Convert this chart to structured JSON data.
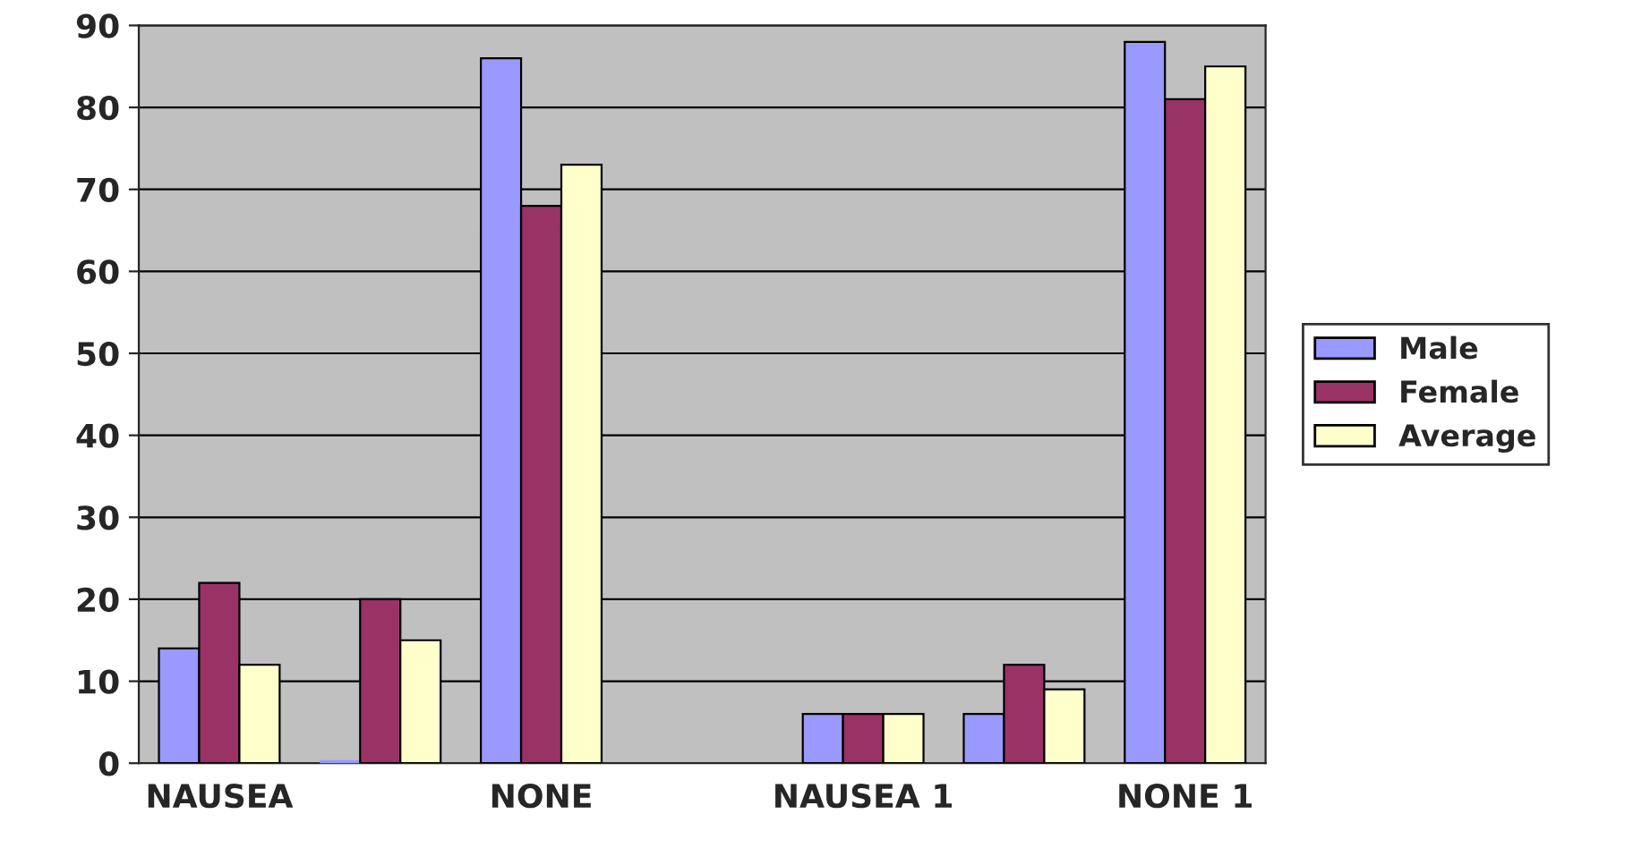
{
  "chart_data": {
    "type": "bar",
    "categories": [
      "NAUSEA",
      null,
      "NONE",
      null,
      "NAUSEA 1",
      null,
      "NONE 1"
    ],
    "series": [
      {
        "name": "Male",
        "color": "#9999ff",
        "values": [
          14,
          0,
          86,
          null,
          6,
          6,
          88
        ]
      },
      {
        "name": "Female",
        "color": "#993366",
        "values": [
          22,
          20,
          68,
          null,
          6,
          12,
          81
        ]
      },
      {
        "name": "Average",
        "color": "#ffffcc",
        "values": [
          12,
          15,
          73,
          null,
          6,
          9,
          85
        ]
      }
    ],
    "ylim": [
      0,
      90
    ],
    "yticks": [
      0,
      10,
      20,
      30,
      40,
      50,
      60,
      70,
      80,
      90
    ],
    "grid": "y",
    "legend": "right"
  }
}
